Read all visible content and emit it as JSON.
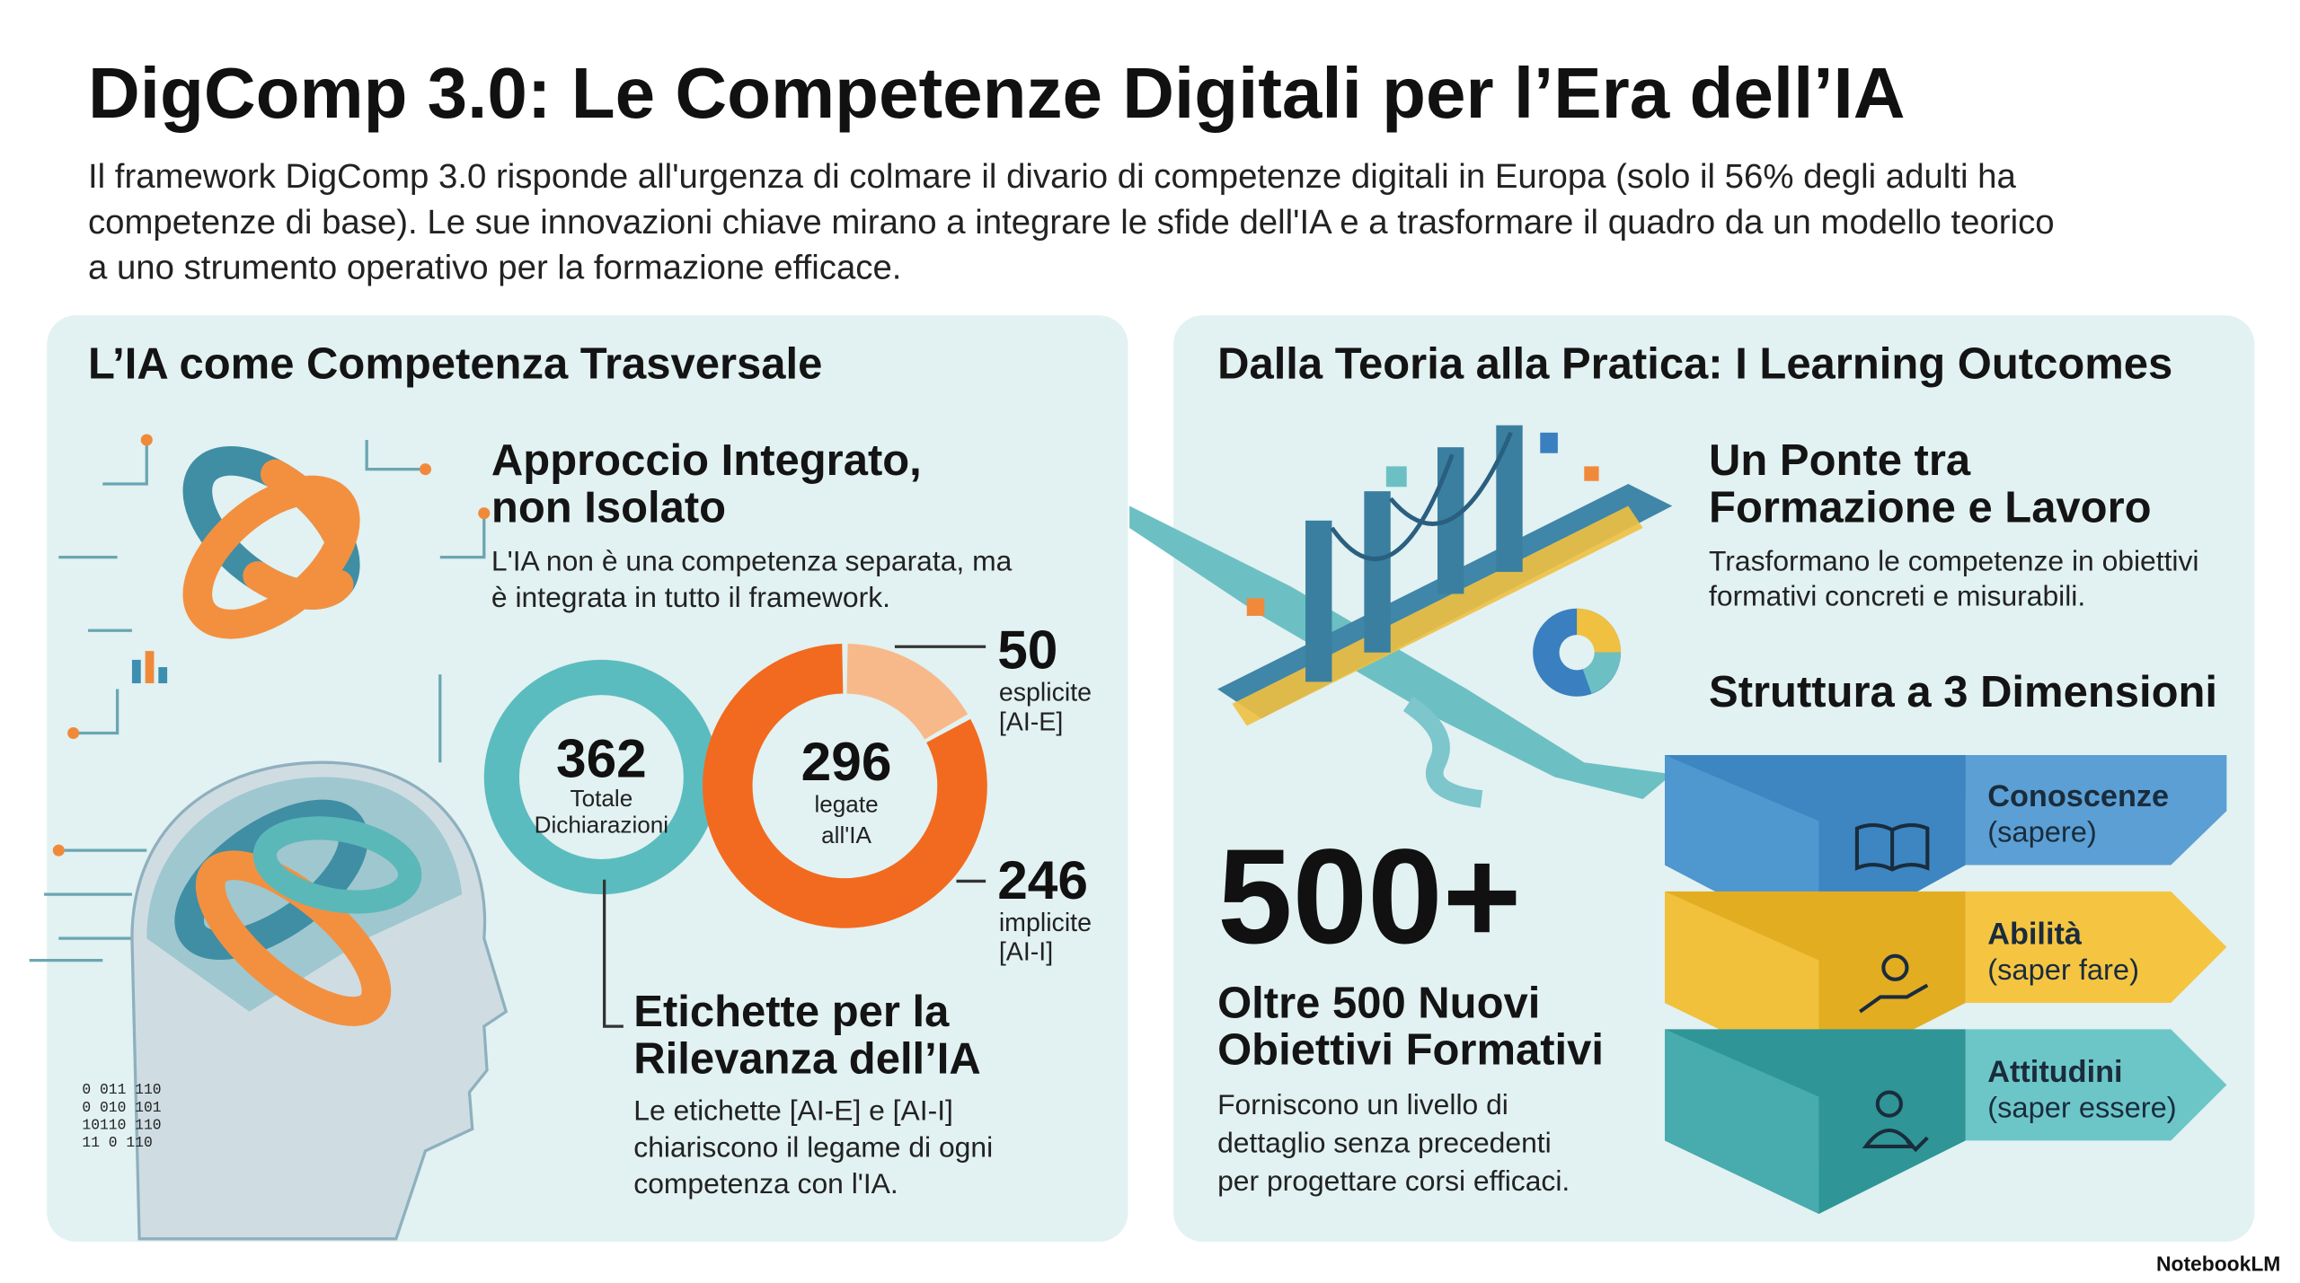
{
  "header": {
    "title": "DigComp 3.0: Le Competenze Digitali per l’Era dell’IA",
    "subtitle": [
      "Il framework DigComp 3.0 risponde all'urgenza di colmare il divario di competenze digitali in Europa (solo il 56% degli adulti ha",
      "competenze di base). Le sue innovazioni chiave mirano a integrare le sfide dell'IA e a trasformare il quadro da un modello teorico",
      "a uno strumento operativo per la formazione efficace."
    ]
  },
  "left": {
    "heading": "L’IA come Competenza Trasversale",
    "approach": {
      "title": [
        "Approccio Integrato,",
        "non Isolato"
      ],
      "body": [
        "L'IA non è una competenza separata, ma",
        "è integrata in tutto il framework."
      ]
    },
    "stats": {
      "total": {
        "value": 362,
        "label": [
          "Totale",
          "Dichiarazioni"
        ]
      },
      "ai": {
        "value": 296,
        "label": [
          "legate",
          "all'IA"
        ]
      },
      "explicit": {
        "value": 50,
        "label": [
          "esplicite",
          "[AI-E]"
        ]
      },
      "implicit": {
        "value": 246,
        "label": [
          "implicite",
          "[AI-I]"
        ]
      }
    },
    "labels": {
      "title": [
        "Etichette per la",
        "Rilevanza dell’IA"
      ],
      "body": [
        "Le etichette [AI-E] e [AI-I]",
        "chiariscono il legame di ogni",
        "competenza con l'IA."
      ]
    }
  },
  "right": {
    "heading": "Dalla Teoria alla Pratica: I Learning Outcomes",
    "bridge": {
      "title": [
        "Un Ponte tra",
        "Formazione e Lavoro"
      ],
      "body": [
        "Trasformano le competenze in obiettivi",
        "formativi concreti e misurabili."
      ]
    },
    "outcomes": {
      "figure": "500+",
      "title": [
        "Oltre 500 Nuovi",
        "Obiettivi Formativi"
      ],
      "body": [
        "Forniscono un livello di",
        "dettaglio senza precedenti",
        "per progettare corsi efficaci."
      ]
    },
    "structure": {
      "title": "Struttura a 3 Dimensioni",
      "dimensions": [
        {
          "name": "Conoscenze",
          "desc": "(sapere)"
        },
        {
          "name": "Abilità",
          "desc": "(saper fare)"
        },
        {
          "name": "Attitudini",
          "desc": "(saper essere)"
        }
      ]
    }
  },
  "footer": "NotebookLM"
}
